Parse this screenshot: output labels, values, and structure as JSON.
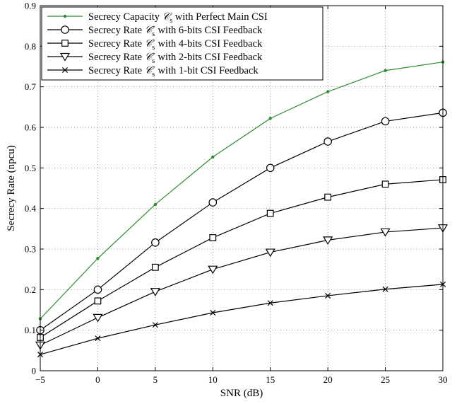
{
  "chart_data": {
    "type": "line",
    "xlabel": "SNR (dB)",
    "ylabel": "Secrecy Rate (npcu)",
    "xlim": [
      -5,
      30
    ],
    "ylim": [
      0,
      0.9
    ],
    "xticks": [
      -5,
      0,
      5,
      10,
      15,
      20,
      25,
      30
    ],
    "xtick_labels": [
      "−5",
      "0",
      "5",
      "10",
      "15",
      "20",
      "25",
      "30"
    ],
    "yticks": [
      0,
      0.1,
      0.2,
      0.3,
      0.4,
      0.5,
      0.6,
      0.7,
      0.8,
      0.9
    ],
    "ytick_labels": [
      "0",
      "0.1",
      "0.2",
      "0.3",
      "0.4",
      "0.5",
      "0.6",
      "0.7",
      "0.8",
      "0.9"
    ],
    "grid": true,
    "legend_position": "top-left",
    "x": [
      -5,
      0,
      5,
      10,
      15,
      20,
      25,
      30
    ],
    "series": [
      {
        "name": "Secrecy Capacity 𝒞s with Perfect Main CSI",
        "legend_parts": [
          "Secrecy Capacity ",
          "𝒞",
          "s",
          "",
          " with Perfect Main CSI"
        ],
        "marker": "dot",
        "color": "#2e8b2e",
        "values": [
          0.128,
          0.277,
          0.41,
          0.527,
          0.622,
          0.688,
          0.74,
          0.761
        ]
      },
      {
        "name": "Secrecy Rate 𝒞s− with 6-bits CSI Feedback",
        "legend_parts": [
          "Secrecy Rate ",
          "𝒞",
          "s",
          "−",
          " with 6-bits CSI Feedback"
        ],
        "marker": "circle",
        "color": "#000000",
        "values": [
          0.1,
          0.2,
          0.316,
          0.415,
          0.5,
          0.565,
          0.615,
          0.636
        ]
      },
      {
        "name": "Secrecy Rate 𝒞s− with 4-bits CSI Feedback",
        "legend_parts": [
          "Secrecy Rate ",
          "𝒞",
          "s",
          "−",
          " with 4-bits CSI Feedback"
        ],
        "marker": "square",
        "color": "#000000",
        "values": [
          0.082,
          0.172,
          0.255,
          0.328,
          0.388,
          0.428,
          0.46,
          0.471
        ]
      },
      {
        "name": "Secrecy Rate 𝒞s− with 2-bits CSI Feedback",
        "legend_parts": [
          "Secrecy Rate ",
          "𝒞",
          "s",
          "−",
          " with 2-bits CSI Feedback"
        ],
        "marker": "triangle-down",
        "color": "#000000",
        "values": [
          0.063,
          0.131,
          0.195,
          0.25,
          0.292,
          0.322,
          0.342,
          0.352
        ]
      },
      {
        "name": "Secrecy Rate 𝒞s− with 1-bit CSI Feedback",
        "legend_parts": [
          "Secrecy Rate ",
          "𝒞",
          "s",
          "−",
          " with 1-bit CSI Feedback"
        ],
        "marker": "x",
        "color": "#000000",
        "values": [
          0.04,
          0.08,
          0.113,
          0.143,
          0.167,
          0.185,
          0.201,
          0.213
        ]
      }
    ]
  }
}
